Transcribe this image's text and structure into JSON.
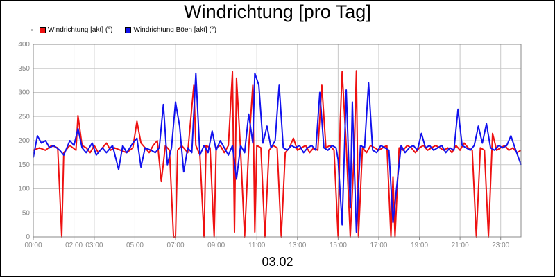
{
  "chart_data": {
    "type": "line",
    "title": "Windrichtung [pro Tag]",
    "xlabel": "03.02",
    "ylabel": "",
    "ylim": [
      0,
      400
    ],
    "yticks": [
      0,
      50,
      100,
      150,
      200,
      250,
      300,
      350,
      400
    ],
    "xlim": [
      0,
      24
    ],
    "xticks": [
      {
        "h": 0,
        "label": "00:00"
      },
      {
        "h": 2,
        "label": "02:00"
      },
      {
        "h": 3,
        "label": "03:00"
      },
      {
        "h": 5,
        "label": "05:00"
      },
      {
        "h": 7,
        "label": "07:00"
      },
      {
        "h": 9,
        "label": "09:00"
      },
      {
        "h": 11,
        "label": "11:00"
      },
      {
        "h": 13,
        "label": "13:00"
      },
      {
        "h": 15,
        "label": "15:00"
      },
      {
        "h": 17,
        "label": "17:00"
      },
      {
        "h": 19,
        "label": "19:00"
      },
      {
        "h": 21,
        "label": "21:00"
      },
      {
        "h": 23,
        "label": "23:00"
      }
    ],
    "grid": true,
    "legend_position": "top-left",
    "series": [
      {
        "name": "Windrichtung [akt] (°)",
        "color": "#ee1111",
        "points": [
          [
            0,
            180
          ],
          [
            0.3,
            185
          ],
          [
            0.6,
            180
          ],
          [
            0.9,
            190
          ],
          [
            1.2,
            185
          ],
          [
            1.4,
            0
          ],
          [
            1.5,
            175
          ],
          [
            1.8,
            190
          ],
          [
            2.1,
            180
          ],
          [
            2.2,
            252
          ],
          [
            2.4,
            190
          ],
          [
            2.6,
            185
          ],
          [
            2.8,
            175
          ],
          [
            3.0,
            190
          ],
          [
            3.2,
            175
          ],
          [
            3.4,
            185
          ],
          [
            3.6,
            195
          ],
          [
            3.8,
            180
          ],
          [
            4.0,
            185
          ],
          [
            4.3,
            180
          ],
          [
            4.6,
            175
          ],
          [
            4.9,
            185
          ],
          [
            5.1,
            240
          ],
          [
            5.3,
            195
          ],
          [
            5.5,
            185
          ],
          [
            5.7,
            175
          ],
          [
            5.9,
            190
          ],
          [
            6.1,
            200
          ],
          [
            6.3,
            115
          ],
          [
            6.5,
            190
          ],
          [
            6.7,
            180
          ],
          [
            6.9,
            0
          ],
          [
            7.0,
            0
          ],
          [
            7.1,
            180
          ],
          [
            7.3,
            190
          ],
          [
            7.6,
            175
          ],
          [
            7.9,
            315
          ],
          [
            8.0,
            190
          ],
          [
            8.2,
            170
          ],
          [
            8.4,
            0
          ],
          [
            8.5,
            190
          ],
          [
            8.7,
            185
          ],
          [
            8.9,
            0
          ],
          [
            9.0,
            185
          ],
          [
            9.2,
            190
          ],
          [
            9.4,
            175
          ],
          [
            9.6,
            190
          ],
          [
            9.8,
            343
          ],
          [
            9.9,
            10
          ],
          [
            10.0,
            330
          ],
          [
            10.2,
            180
          ],
          [
            10.4,
            0
          ],
          [
            10.6,
            185
          ],
          [
            10.8,
            315
          ],
          [
            10.9,
            10
          ],
          [
            11.0,
            190
          ],
          [
            11.2,
            185
          ],
          [
            11.4,
            0
          ],
          [
            11.6,
            180
          ],
          [
            11.8,
            190
          ],
          [
            12.0,
            185
          ],
          [
            12.2,
            0
          ],
          [
            12.4,
            175
          ],
          [
            12.6,
            185
          ],
          [
            12.8,
            205
          ],
          [
            13.0,
            180
          ],
          [
            13.2,
            185
          ],
          [
            13.4,
            190
          ],
          [
            13.6,
            175
          ],
          [
            13.8,
            185
          ],
          [
            14.0,
            180
          ],
          [
            14.2,
            315
          ],
          [
            14.4,
            185
          ],
          [
            14.6,
            190
          ],
          [
            14.8,
            180
          ],
          [
            15.0,
            0
          ],
          [
            15.1,
            235
          ],
          [
            15.2,
            343
          ],
          [
            15.4,
            190
          ],
          [
            15.6,
            0
          ],
          [
            15.8,
            185
          ],
          [
            15.9,
            345
          ],
          [
            16.0,
            0
          ],
          [
            16.2,
            185
          ],
          [
            16.4,
            175
          ],
          [
            16.6,
            190
          ],
          [
            16.8,
            185
          ],
          [
            17.0,
            180
          ],
          [
            17.2,
            185
          ],
          [
            17.4,
            190
          ],
          [
            17.6,
            0
          ],
          [
            17.7,
            125
          ],
          [
            17.8,
            0
          ],
          [
            18.0,
            185
          ],
          [
            18.2,
            180
          ],
          [
            18.4,
            190
          ],
          [
            18.6,
            185
          ],
          [
            18.8,
            175
          ],
          [
            19.0,
            185
          ],
          [
            19.2,
            190
          ],
          [
            19.4,
            180
          ],
          [
            19.6,
            185
          ],
          [
            19.8,
            190
          ],
          [
            20.0,
            185
          ],
          [
            20.2,
            180
          ],
          [
            20.4,
            185
          ],
          [
            20.6,
            175
          ],
          [
            20.8,
            190
          ],
          [
            21.0,
            180
          ],
          [
            21.2,
            195
          ],
          [
            21.4,
            185
          ],
          [
            21.6,
            180
          ],
          [
            21.8,
            0
          ],
          [
            22.0,
            185
          ],
          [
            22.2,
            180
          ],
          [
            22.4,
            0
          ],
          [
            22.6,
            215
          ],
          [
            22.8,
            180
          ],
          [
            23.0,
            185
          ],
          [
            23.2,
            190
          ],
          [
            23.4,
            180
          ],
          [
            23.6,
            185
          ],
          [
            23.8,
            175
          ],
          [
            24.0,
            180
          ]
        ]
      },
      {
        "name": "Windrichtung Böen [akt] (°)",
        "color": "#1111ee",
        "points": [
          [
            0,
            165
          ],
          [
            0.2,
            210
          ],
          [
            0.4,
            195
          ],
          [
            0.6,
            200
          ],
          [
            0.8,
            185
          ],
          [
            1.0,
            190
          ],
          [
            1.3,
            180
          ],
          [
            1.5,
            170
          ],
          [
            1.8,
            200
          ],
          [
            2.0,
            190
          ],
          [
            2.2,
            225
          ],
          [
            2.4,
            185
          ],
          [
            2.6,
            175
          ],
          [
            2.9,
            195
          ],
          [
            3.1,
            170
          ],
          [
            3.4,
            185
          ],
          [
            3.6,
            175
          ],
          [
            3.9,
            190
          ],
          [
            4.2,
            140
          ],
          [
            4.4,
            190
          ],
          [
            4.6,
            175
          ],
          [
            4.9,
            195
          ],
          [
            5.1,
            205
          ],
          [
            5.3,
            145
          ],
          [
            5.5,
            185
          ],
          [
            5.8,
            180
          ],
          [
            6.0,
            175
          ],
          [
            6.2,
            185
          ],
          [
            6.4,
            275
          ],
          [
            6.6,
            150
          ],
          [
            6.8,
            185
          ],
          [
            7.0,
            280
          ],
          [
            7.2,
            230
          ],
          [
            7.4,
            135
          ],
          [
            7.6,
            185
          ],
          [
            7.8,
            175
          ],
          [
            8.0,
            340
          ],
          [
            8.2,
            170
          ],
          [
            8.4,
            190
          ],
          [
            8.6,
            175
          ],
          [
            8.8,
            220
          ],
          [
            9.0,
            180
          ],
          [
            9.2,
            200
          ],
          [
            9.4,
            185
          ],
          [
            9.6,
            170
          ],
          [
            9.8,
            190
          ],
          [
            10.0,
            120
          ],
          [
            10.2,
            190
          ],
          [
            10.4,
            175
          ],
          [
            10.6,
            255
          ],
          [
            10.8,
            195
          ],
          [
            10.9,
            340
          ],
          [
            11.1,
            315
          ],
          [
            11.3,
            195
          ],
          [
            11.5,
            230
          ],
          [
            11.7,
            185
          ],
          [
            11.9,
            200
          ],
          [
            12.1,
            315
          ],
          [
            12.3,
            185
          ],
          [
            12.5,
            180
          ],
          [
            12.7,
            190
          ],
          [
            12.9,
            185
          ],
          [
            13.1,
            190
          ],
          [
            13.3,
            175
          ],
          [
            13.5,
            185
          ],
          [
            13.7,
            190
          ],
          [
            13.9,
            180
          ],
          [
            14.1,
            300
          ],
          [
            14.3,
            185
          ],
          [
            14.5,
            180
          ],
          [
            14.7,
            190
          ],
          [
            14.9,
            185
          ],
          [
            15.0,
            160
          ],
          [
            15.2,
            25
          ],
          [
            15.4,
            305
          ],
          [
            15.6,
            60
          ],
          [
            15.7,
            280
          ],
          [
            15.9,
            10
          ],
          [
            16.1,
            190
          ],
          [
            16.3,
            185
          ],
          [
            16.5,
            320
          ],
          [
            16.7,
            180
          ],
          [
            16.9,
            175
          ],
          [
            17.1,
            190
          ],
          [
            17.3,
            185
          ],
          [
            17.5,
            180
          ],
          [
            17.7,
            30
          ],
          [
            17.9,
            110
          ],
          [
            18.1,
            190
          ],
          [
            18.3,
            175
          ],
          [
            18.5,
            185
          ],
          [
            18.7,
            190
          ],
          [
            18.9,
            180
          ],
          [
            19.1,
            215
          ],
          [
            19.3,
            185
          ],
          [
            19.5,
            190
          ],
          [
            19.7,
            180
          ],
          [
            19.9,
            185
          ],
          [
            20.1,
            190
          ],
          [
            20.3,
            175
          ],
          [
            20.5,
            185
          ],
          [
            20.7,
            180
          ],
          [
            20.9,
            265
          ],
          [
            21.1,
            190
          ],
          [
            21.3,
            185
          ],
          [
            21.5,
            180
          ],
          [
            21.7,
            190
          ],
          [
            21.9,
            230
          ],
          [
            22.1,
            195
          ],
          [
            22.3,
            235
          ],
          [
            22.5,
            185
          ],
          [
            22.7,
            180
          ],
          [
            22.9,
            190
          ],
          [
            23.1,
            185
          ],
          [
            23.3,
            190
          ],
          [
            23.5,
            210
          ],
          [
            23.7,
            185
          ],
          [
            24.0,
            150
          ]
        ]
      }
    ]
  }
}
